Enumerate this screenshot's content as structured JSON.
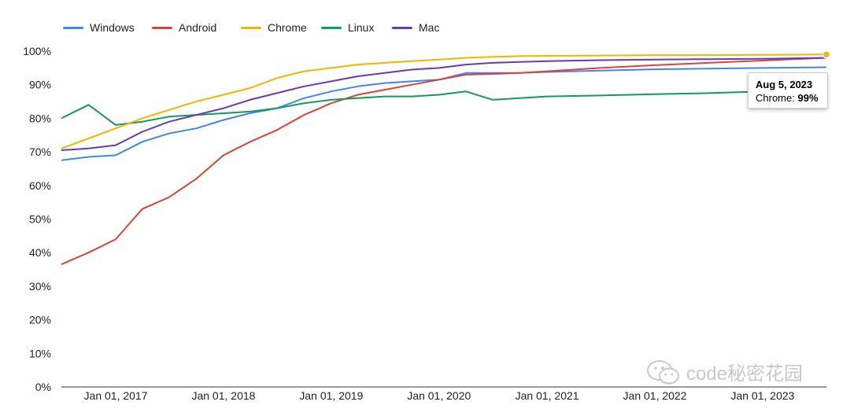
{
  "chart_data": {
    "type": "line",
    "title": "",
    "xlabel": "",
    "ylabel": "",
    "x_range": [
      "2016-07-01",
      "2023-08-05"
    ],
    "ylim": [
      0,
      100
    ],
    "y_ticks": [
      0,
      10,
      20,
      30,
      40,
      50,
      60,
      70,
      80,
      90,
      100
    ],
    "y_tick_labels": [
      "0%",
      "10%",
      "20%",
      "30%",
      "40%",
      "50%",
      "60%",
      "70%",
      "80%",
      "90%",
      "100%"
    ],
    "x_ticks": [
      "2017-01-01",
      "2018-01-01",
      "2019-01-01",
      "2020-01-01",
      "2021-01-01",
      "2022-01-01",
      "2023-01-01"
    ],
    "x_tick_labels": [
      "Jan 01, 2017",
      "Jan 01, 2018",
      "Jan 01, 2019",
      "Jan 01, 2020",
      "Jan 01, 2021",
      "Jan 01, 2022",
      "Jan 01, 2023"
    ],
    "grid": false,
    "legend": "top-left",
    "series": [
      {
        "name": "Windows",
        "color": "#4285f4",
        "x": [
          "2016-07-01",
          "2016-10-01",
          "2017-01-01",
          "2017-04-01",
          "2017-07-01",
          "2017-10-01",
          "2018-01-01",
          "2018-04-01",
          "2018-07-01",
          "2018-10-01",
          "2019-01-01",
          "2019-04-01",
          "2019-07-01",
          "2019-10-01",
          "2020-01-01",
          "2020-04-01",
          "2020-07-01",
          "2020-10-01",
          "2021-01-01",
          "2021-07-01",
          "2022-01-01",
          "2022-07-01",
          "2023-01-01",
          "2023-08-05"
        ],
        "y": [
          67.5,
          68.5,
          69,
          73,
          75.5,
          77,
          79.5,
          81.5,
          83,
          86,
          88,
          89.5,
          90.5,
          91,
          91.5,
          93.5,
          93.5,
          93.5,
          93.8,
          94.2,
          94.6,
          94.8,
          95,
          95.2
        ]
      },
      {
        "name": "Android",
        "color": "#db4437",
        "x": [
          "2016-07-01",
          "2016-10-01",
          "2017-01-01",
          "2017-04-01",
          "2017-07-01",
          "2017-10-01",
          "2018-01-01",
          "2018-04-01",
          "2018-07-01",
          "2018-10-01",
          "2019-01-01",
          "2019-04-01",
          "2019-07-01",
          "2019-10-01",
          "2020-01-01",
          "2020-04-01",
          "2020-07-01",
          "2020-10-01",
          "2021-01-01",
          "2021-07-01",
          "2022-01-01",
          "2022-07-01",
          "2023-01-01",
          "2023-08-05"
        ],
        "y": [
          36.5,
          40,
          44,
          53,
          56.5,
          62,
          69,
          73,
          76.5,
          81,
          84.5,
          87,
          88.5,
          90,
          91.5,
          93,
          93.2,
          93.5,
          94,
          95,
          95.8,
          96.5,
          97.2,
          98
        ]
      },
      {
        "name": "Chrome",
        "color": "#f4b400",
        "x": [
          "2016-07-01",
          "2016-10-01",
          "2017-01-01",
          "2017-04-01",
          "2017-07-01",
          "2017-10-01",
          "2018-01-01",
          "2018-04-01",
          "2018-07-01",
          "2018-10-01",
          "2019-01-01",
          "2019-04-01",
          "2019-07-01",
          "2019-10-01",
          "2020-01-01",
          "2020-04-01",
          "2020-07-01",
          "2020-10-01",
          "2021-01-01",
          "2021-07-01",
          "2022-01-01",
          "2022-07-01",
          "2023-01-01",
          "2023-08-05"
        ],
        "y": [
          71,
          74,
          77,
          80,
          82.5,
          85,
          87,
          89,
          92,
          94,
          95,
          96,
          96.5,
          97,
          97.5,
          98,
          98.3,
          98.5,
          98.6,
          98.7,
          98.8,
          98.8,
          98.9,
          99
        ]
      },
      {
        "name": "Linux",
        "color": "#0f9d58",
        "x": [
          "2016-07-01",
          "2016-10-01",
          "2017-01-01",
          "2017-04-01",
          "2017-07-01",
          "2017-10-01",
          "2018-01-01",
          "2018-04-01",
          "2018-07-01",
          "2018-10-01",
          "2019-01-01",
          "2019-04-01",
          "2019-07-01",
          "2019-10-01",
          "2020-01-01",
          "2020-04-01",
          "2020-07-01",
          "2020-10-01",
          "2021-01-01",
          "2021-07-01",
          "2022-01-01",
          "2022-07-01",
          "2023-01-01",
          "2023-08-05"
        ],
        "y": [
          80,
          84,
          78,
          79,
          80.5,
          81,
          81.5,
          82,
          83,
          84.5,
          85.5,
          86,
          86.5,
          86.5,
          87,
          88,
          85.5,
          86,
          86.5,
          86.8,
          87.2,
          87.5,
          88,
          89
        ]
      },
      {
        "name": "Mac",
        "color": "#673ab7",
        "x": [
          "2016-07-01",
          "2016-10-01",
          "2017-01-01",
          "2017-04-01",
          "2017-07-01",
          "2017-10-01",
          "2018-01-01",
          "2018-04-01",
          "2018-07-01",
          "2018-10-01",
          "2019-01-01",
          "2019-04-01",
          "2019-07-01",
          "2019-10-01",
          "2020-01-01",
          "2020-04-01",
          "2020-07-01",
          "2020-10-01",
          "2021-01-01",
          "2021-07-01",
          "2022-01-01",
          "2022-07-01",
          "2023-01-01",
          "2023-08-05"
        ],
        "y": [
          70.5,
          71,
          72,
          76,
          79,
          81,
          83,
          85.5,
          87.5,
          89.5,
          91,
          92.5,
          93.5,
          94.5,
          95,
          96,
          96.5,
          96.8,
          97,
          97.3,
          97.5,
          97.6,
          97.7,
          98
        ]
      }
    ],
    "tooltip": {
      "date": "Aug 5, 2023",
      "series": "Chrome",
      "value": "99%"
    }
  },
  "watermark": {
    "text": "code秘密花园"
  }
}
